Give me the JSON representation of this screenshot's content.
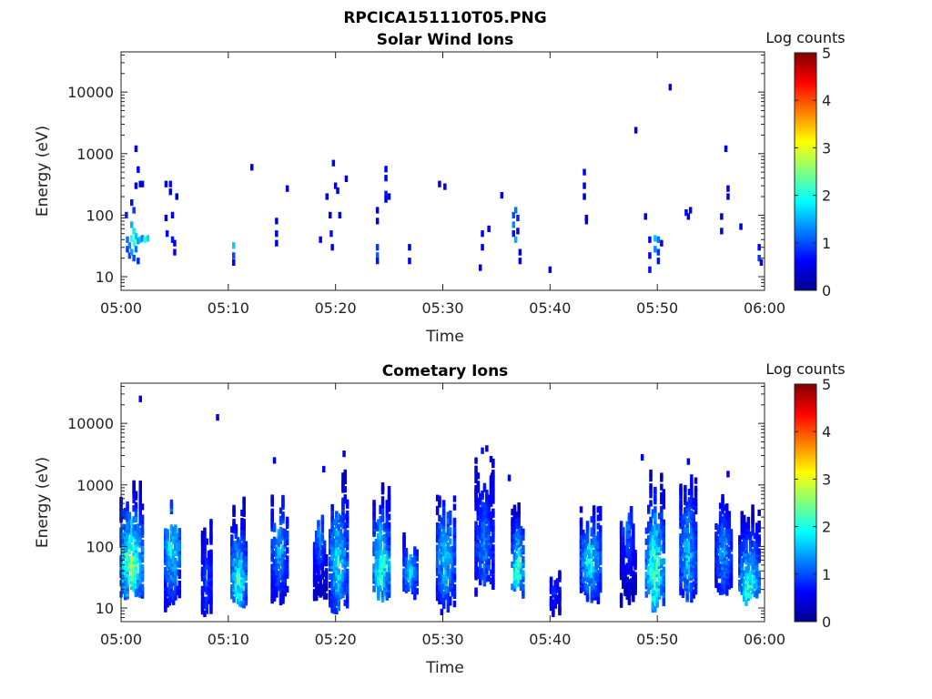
{
  "figure": {
    "filename": "RPCICA151110T05.PNG"
  },
  "chart_data": [
    {
      "type": "heatmap",
      "title": "Solar Wind Ions",
      "xlabel": "Time",
      "ylabel": "Energy (eV)",
      "x_ticks": [
        "05:00",
        "05:10",
        "05:20",
        "05:30",
        "05:40",
        "05:50",
        "06:00"
      ],
      "xlim_minutes": [
        0,
        60
      ],
      "y_scale": "log",
      "y_ticks": [
        "10",
        "100",
        "1000",
        "10000"
      ],
      "ylim": [
        6,
        45000
      ],
      "colorbar": {
        "label": "Log counts",
        "range": [
          0,
          5
        ],
        "ticks": [
          "0",
          "1",
          "2",
          "3",
          "4",
          "5"
        ],
        "colormap": "jet"
      },
      "points": [
        [
          0.5,
          100,
          0.8
        ],
        [
          0.6,
          40,
          1.2
        ],
        [
          0.6,
          28,
          0.9
        ],
        [
          0.8,
          32,
          1.3
        ],
        [
          0.8,
          22,
          1.0
        ],
        [
          1.0,
          160,
          0.7
        ],
        [
          1.0,
          70,
          1.5
        ],
        [
          1.0,
          42,
          2.0
        ],
        [
          1.0,
          25,
          1.4
        ],
        [
          1.2,
          120,
          0.9
        ],
        [
          1.2,
          55,
          1.8
        ],
        [
          1.2,
          35,
          2.2
        ],
        [
          1.2,
          20,
          1.0
        ],
        [
          1.4,
          1200,
          0.5
        ],
        [
          1.4,
          300,
          0.5
        ],
        [
          1.4,
          45,
          1.6
        ],
        [
          1.4,
          28,
          1.2
        ],
        [
          1.6,
          550,
          0.6
        ],
        [
          1.6,
          38,
          1.4
        ],
        [
          1.6,
          18,
          0.8
        ],
        [
          1.8,
          320,
          0.5
        ],
        [
          1.8,
          40,
          1.6
        ],
        [
          2.0,
          320,
          0.5
        ],
        [
          2.0,
          42,
          1.2
        ],
        [
          2.2,
          40,
          2.0
        ],
        [
          2.5,
          42,
          1.7
        ],
        [
          4.2,
          320,
          0.5
        ],
        [
          4.2,
          90,
          0.5
        ],
        [
          4.3,
          50,
          0.6
        ],
        [
          4.6,
          320,
          0.7
        ],
        [
          4.6,
          240,
          0.5
        ],
        [
          4.8,
          100,
          0.6
        ],
        [
          4.8,
          40,
          0.7
        ],
        [
          5.0,
          35,
          0.5
        ],
        [
          5.0,
          25,
          0.6
        ],
        [
          5.2,
          200,
          0.5
        ],
        [
          10.5,
          32,
          1.6
        ],
        [
          10.5,
          22,
          1.0
        ],
        [
          10.5,
          17,
          0.6
        ],
        [
          12.2,
          600,
          0.5
        ],
        [
          14.5,
          80,
          0.5
        ],
        [
          14.5,
          50,
          0.6
        ],
        [
          14.5,
          35,
          0.4
        ],
        [
          15.5,
          270,
          0.5
        ],
        [
          18.6,
          40,
          0.6
        ],
        [
          19.2,
          200,
          0.5
        ],
        [
          19.5,
          100,
          0.4
        ],
        [
          19.6,
          50,
          0.7
        ],
        [
          19.7,
          30,
          0.5
        ],
        [
          19.8,
          700,
          0.5
        ],
        [
          20.0,
          300,
          0.6
        ],
        [
          20.2,
          250,
          0.5
        ],
        [
          20.4,
          100,
          0.6
        ],
        [
          21.0,
          390,
          0.5
        ],
        [
          23.9,
          120,
          0.6
        ],
        [
          23.9,
          80,
          0.4
        ],
        [
          23.9,
          30,
          0.9
        ],
        [
          23.9,
          22,
          1.1
        ],
        [
          23.9,
          18,
          0.7
        ],
        [
          24.7,
          560,
          0.6
        ],
        [
          24.7,
          400,
          0.5
        ],
        [
          24.7,
          220,
          0.7
        ],
        [
          24.7,
          180,
          0.4
        ],
        [
          25.0,
          200,
          0.5
        ],
        [
          26.9,
          30,
          0.5
        ],
        [
          26.9,
          18,
          0.6
        ],
        [
          29.7,
          320,
          0.5
        ],
        [
          30.2,
          290,
          0.5
        ],
        [
          33.5,
          14,
          0.5
        ],
        [
          33.7,
          50,
          0.6
        ],
        [
          33.7,
          30,
          0.5
        ],
        [
          34.3,
          60,
          0.6
        ],
        [
          35.5,
          210,
          0.5
        ],
        [
          36.6,
          100,
          1.0
        ],
        [
          36.6,
          70,
          1.3
        ],
        [
          36.6,
          50,
          0.7
        ],
        [
          36.8,
          120,
          1.2
        ],
        [
          36.8,
          40,
          1.5
        ],
        [
          37.0,
          90,
          0.8
        ],
        [
          37.0,
          55,
          0.6
        ],
        [
          37.2,
          25,
          0.5
        ],
        [
          37.2,
          18,
          0.6
        ],
        [
          40.0,
          13,
          0.5
        ],
        [
          43.2,
          500,
          0.6
        ],
        [
          43.2,
          300,
          0.5
        ],
        [
          43.2,
          200,
          0.4
        ],
        [
          43.4,
          90,
          0.5
        ],
        [
          43.4,
          80,
          0.4
        ],
        [
          48.0,
          2400,
          0.6
        ],
        [
          48.9,
          95,
          0.5
        ],
        [
          49.3,
          40,
          0.6
        ],
        [
          49.3,
          22,
          0.5
        ],
        [
          49.3,
          13,
          0.7
        ],
        [
          49.8,
          42,
          1.6
        ],
        [
          49.8,
          28,
          1.3
        ],
        [
          50.1,
          40,
          1.2
        ],
        [
          50.1,
          25,
          0.9
        ],
        [
          50.1,
          18,
          0.7
        ],
        [
          50.4,
          35,
          0.5
        ],
        [
          51.2,
          12000,
          0.5
        ],
        [
          52.7,
          110,
          0.6
        ],
        [
          52.9,
          95,
          0.5
        ],
        [
          53.1,
          120,
          0.5
        ],
        [
          56.0,
          95,
          0.5
        ],
        [
          56.0,
          55,
          0.6
        ],
        [
          56.4,
          1200,
          0.5
        ],
        [
          56.6,
          270,
          0.5
        ],
        [
          56.6,
          200,
          0.4
        ],
        [
          57.8,
          65,
          0.5
        ],
        [
          59.5,
          30,
          0.6
        ],
        [
          59.5,
          20,
          0.9
        ],
        [
          59.7,
          17,
          0.5
        ]
      ]
    },
    {
      "type": "heatmap",
      "title": "Cometary Ions",
      "xlabel": "Time",
      "ylabel": "Energy (eV)",
      "x_ticks": [
        "05:00",
        "05:10",
        "05:20",
        "05:30",
        "05:40",
        "05:50",
        "06:00"
      ],
      "xlim_minutes": [
        0,
        60
      ],
      "y_scale": "log",
      "y_ticks": [
        "10",
        "100",
        "1000",
        "10000"
      ],
      "ylim": [
        6,
        45000
      ],
      "colorbar": {
        "label": "Log counts",
        "range": [
          0,
          5
        ],
        "ticks": [
          "0",
          "1",
          "2",
          "3",
          "4",
          "5"
        ],
        "colormap": "jet"
      },
      "bursts": [
        {
          "t": 1.0,
          "width": 2.2,
          "emin": 14,
          "emax": 1300,
          "peak": 3.0,
          "peak_energy": 55
        },
        {
          "t": 4.8,
          "width": 1.5,
          "emin": 8,
          "emax": 600,
          "peak": 2.3,
          "peak_energy": 100
        },
        {
          "t": 8.0,
          "width": 1.0,
          "emin": 8,
          "emax": 400,
          "peak": 1.2,
          "peak_energy": 30
        },
        {
          "t": 11.0,
          "width": 1.5,
          "emin": 10,
          "emax": 700,
          "peak": 2.5,
          "peak_energy": 30
        },
        {
          "t": 14.8,
          "width": 1.6,
          "emin": 10,
          "emax": 800,
          "peak": 1.8,
          "peak_energy": 100
        },
        {
          "t": 18.6,
          "width": 1.3,
          "emin": 12,
          "emax": 300,
          "peak": 1.5,
          "peak_energy": 150
        },
        {
          "t": 20.3,
          "width": 1.8,
          "emin": 8,
          "emax": 1600,
          "peak": 2.2,
          "peak_energy": 60
        },
        {
          "t": 24.3,
          "width": 1.6,
          "emin": 12,
          "emax": 1100,
          "peak": 2.7,
          "peak_energy": 50
        },
        {
          "t": 27.0,
          "width": 1.4,
          "emin": 15,
          "emax": 200,
          "peak": 2.0,
          "peak_energy": 40
        },
        {
          "t": 30.3,
          "width": 1.8,
          "emin": 8,
          "emax": 800,
          "peak": 2.1,
          "peak_energy": 70
        },
        {
          "t": 33.9,
          "width": 1.8,
          "emin": 15,
          "emax": 3700,
          "peak": 1.5,
          "peak_energy": 100
        },
        {
          "t": 37.0,
          "width": 1.2,
          "emin": 15,
          "emax": 500,
          "peak": 2.8,
          "peak_energy": 45
        },
        {
          "t": 40.5,
          "width": 1.0,
          "emin": 8,
          "emax": 60,
          "peak": 1.0,
          "peak_energy": 20
        },
        {
          "t": 43.8,
          "width": 2.0,
          "emin": 12,
          "emax": 500,
          "peak": 2.2,
          "peak_energy": 60
        },
        {
          "t": 47.3,
          "width": 1.5,
          "emin": 10,
          "emax": 450,
          "peak": 1.3,
          "peak_energy": 200
        },
        {
          "t": 49.8,
          "width": 1.8,
          "emin": 9,
          "emax": 2700,
          "peak": 2.8,
          "peak_energy": 40
        },
        {
          "t": 52.9,
          "width": 1.6,
          "emin": 12,
          "emax": 2300,
          "peak": 2.0,
          "peak_energy": 80
        },
        {
          "t": 56.2,
          "width": 1.6,
          "emin": 15,
          "emax": 900,
          "peak": 1.7,
          "peak_energy": 80
        },
        {
          "t": 58.6,
          "width": 2.0,
          "emin": 12,
          "emax": 800,
          "peak": 2.5,
          "peak_energy": 25
        }
      ],
      "sparse_points": [
        [
          1.8,
          25000,
          0.5
        ],
        [
          9.0,
          12500,
          0.5
        ],
        [
          14.3,
          2500,
          0.5
        ],
        [
          18.9,
          1800,
          0.5
        ],
        [
          20.8,
          3200,
          0.5
        ],
        [
          33.7,
          3600,
          0.7
        ],
        [
          34.1,
          3900,
          0.5
        ],
        [
          34.6,
          1400,
          0.6
        ],
        [
          36.2,
          1300,
          0.5
        ],
        [
          48.6,
          2800,
          0.5
        ],
        [
          52.9,
          2400,
          0.6
        ],
        [
          56.6,
          1500,
          0.5
        ],
        [
          59.9,
          1800,
          0.5
        ]
      ]
    }
  ]
}
